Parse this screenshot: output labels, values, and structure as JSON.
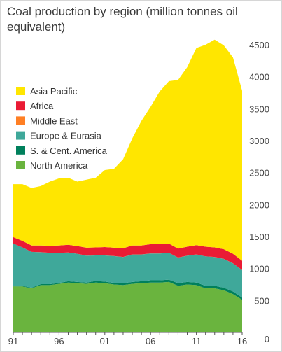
{
  "chart_data": {
    "type": "area",
    "stacked": true,
    "title": "Coal production by region (million tonnes oil equivalent)",
    "x": [
      1991,
      1992,
      1993,
      1994,
      1995,
      1996,
      1997,
      1998,
      1999,
      2000,
      2001,
      2002,
      2003,
      2004,
      2005,
      2006,
      2007,
      2008,
      2009,
      2010,
      2011,
      2012,
      2013,
      2014,
      2015,
      2016
    ],
    "x_tick_labels": [
      {
        "year": 1991,
        "label": "91"
      },
      {
        "year": 1996,
        "label": "96"
      },
      {
        "year": 2001,
        "label": "01"
      },
      {
        "year": 2006,
        "label": "06"
      },
      {
        "year": 2011,
        "label": "11"
      },
      {
        "year": 2016,
        "label": "16"
      }
    ],
    "y_ticks": [
      0,
      500,
      1000,
      1500,
      2000,
      2500,
      3000,
      3500,
      4000,
      4500
    ],
    "ylim": [
      0,
      4500
    ],
    "y_axis_position": "right",
    "grid": false,
    "legend_position": "top-left",
    "series": [
      {
        "name": "North America",
        "color": "#6ab43e",
        "values": [
          720,
          720,
          690,
          740,
          740,
          760,
          780,
          770,
          760,
          780,
          770,
          750,
          740,
          760,
          770,
          780,
          780,
          790,
          730,
          750,
          740,
          690,
          690,
          660,
          600,
          510
        ]
      },
      {
        "name": "S. & Cent. America",
        "color": "#00805c",
        "values": [
          10,
          10,
          10,
          15,
          15,
          15,
          20,
          20,
          20,
          25,
          25,
          25,
          30,
          30,
          30,
          35,
          35,
          35,
          40,
          40,
          40,
          40,
          40,
          40,
          40,
          35
        ]
      },
      {
        "name": "Europe & Eurasia",
        "color": "#3fa89a",
        "values": [
          660,
          600,
          560,
          500,
          490,
          470,
          450,
          440,
          420,
          400,
          410,
          420,
          410,
          430,
          420,
          420,
          420,
          420,
          400,
          410,
          440,
          460,
          450,
          450,
          440,
          430
        ]
      },
      {
        "name": "Middle East",
        "color": "#ff7f24",
        "values": [
          1,
          1,
          1,
          1,
          1,
          1,
          1,
          1,
          1,
          1,
          1,
          1,
          1,
          1,
          1,
          1,
          1,
          1,
          1,
          1,
          1,
          1,
          1,
          1,
          1,
          1
        ]
      },
      {
        "name": "Africa",
        "color": "#ea1b35",
        "values": [
          100,
          100,
          100,
          105,
          110,
          115,
          120,
          120,
          125,
          125,
          130,
          130,
          135,
          140,
          140,
          145,
          145,
          145,
          140,
          140,
          145,
          150,
          150,
          150,
          150,
          145
        ]
      },
      {
        "name": "Asia Pacific",
        "color": "#ffe600",
        "values": [
          829,
          889,
          899,
          929,
          1004,
          1049,
          1049,
          1009,
          1064,
          1089,
          1204,
          1234,
          1394,
          1674,
          1949,
          2149,
          2389,
          2539,
          2639,
          2809,
          3084,
          3159,
          3249,
          3189,
          3069,
          2659
        ]
      }
    ]
  }
}
